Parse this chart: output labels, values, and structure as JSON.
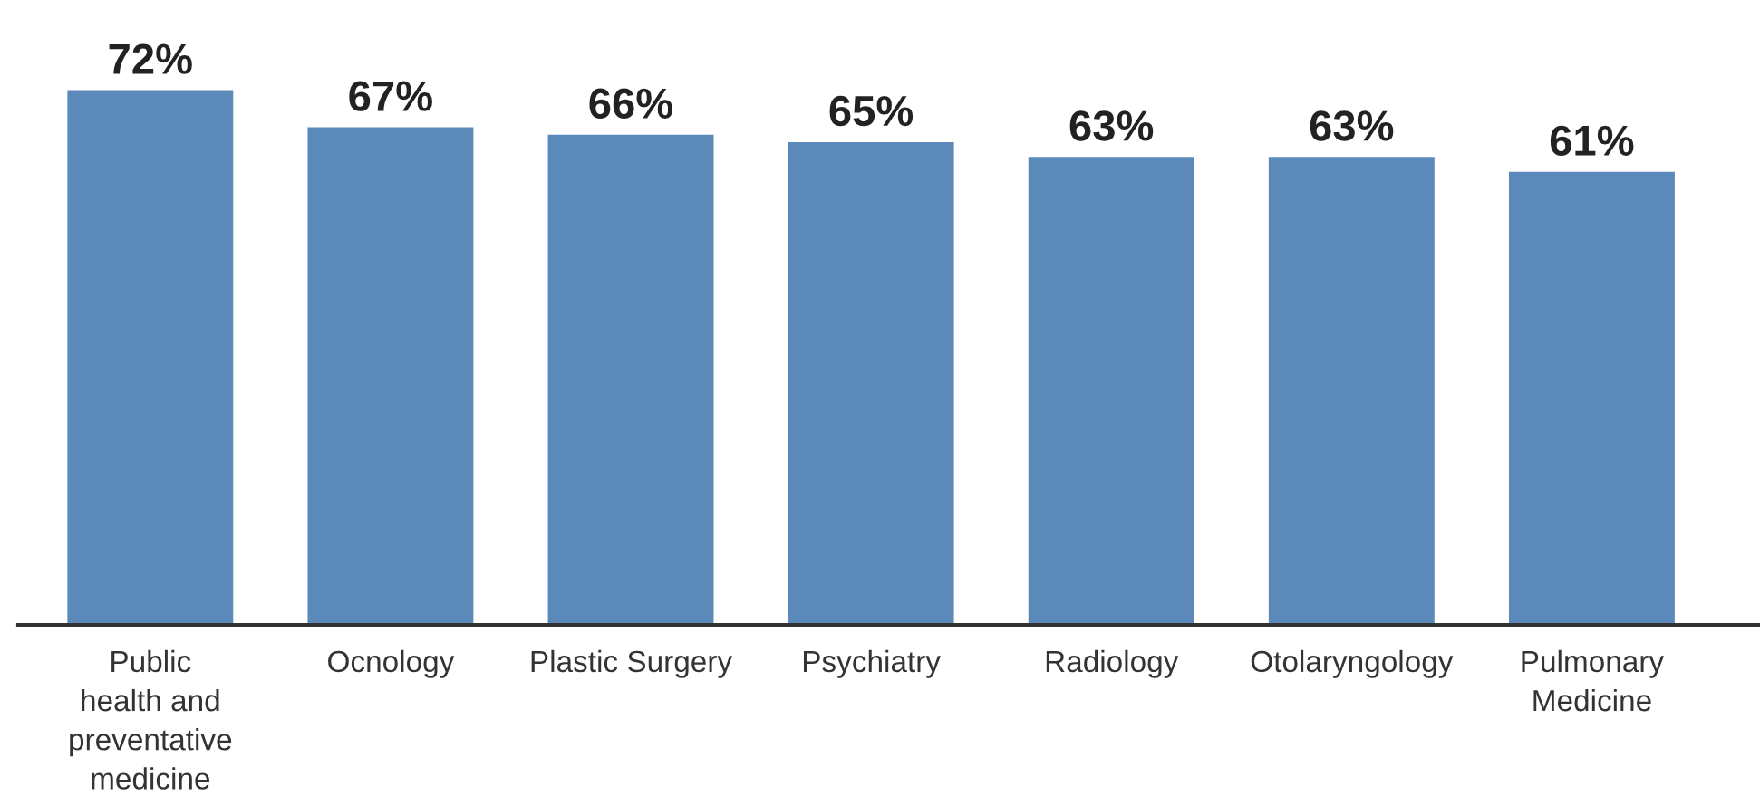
{
  "chart_data": {
    "type": "bar",
    "categories": [
      "Public\nhealth and\npreventative\nmedicine",
      "Ocnology",
      "Plastic Surgery",
      "Psychiatry",
      "Radiology",
      "Otolaryngology",
      "Pulmonary\nMedicine"
    ],
    "values": [
      72,
      67,
      66,
      65,
      63,
      63,
      61
    ],
    "color": "#5a89ba",
    "value_labels": [
      "72%",
      "67%",
      "66%",
      "65%",
      "63%",
      "63%",
      "61%"
    ],
    "tick_labels": "x",
    "grid": false,
    "legend": false
  }
}
